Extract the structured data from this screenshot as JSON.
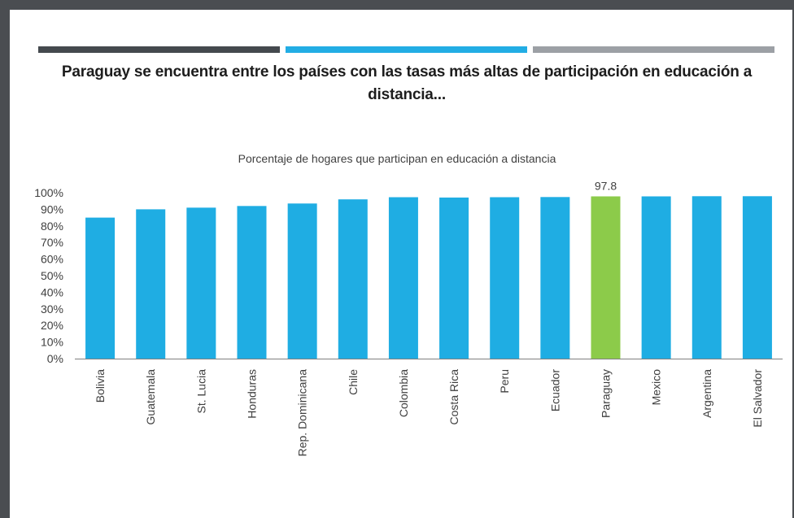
{
  "header": {
    "headline": "Paraguay se encuentra entre los países con las tasas más altas de participación en educación a distancia...",
    "stripe_colors": [
      "#44494e",
      "#22ade4",
      "#9ca0a5"
    ]
  },
  "colors": {
    "bar": "#1fade3",
    "highlight": "#8ccb4a",
    "axis": "#7f7f7f",
    "text": "#404040"
  },
  "chart_data": {
    "type": "bar",
    "title": "Porcentaje de hogares que participan en educación a distancia",
    "xlabel": "",
    "ylabel": "",
    "categories": [
      "Bolivia",
      "Guatemala",
      "St. Lucia",
      "Honduras",
      "Rep. Dominicana",
      "Chile",
      "Colombia",
      "Costa Rica",
      "Peru",
      "Ecuador",
      "Paraguay",
      "Mexico",
      "Argentina",
      "El Salvador"
    ],
    "values": [
      85,
      90,
      91,
      92,
      93.5,
      96,
      97.3,
      97.1,
      97.3,
      97.4,
      97.8,
      97.8,
      97.9,
      97.9
    ],
    "highlight_category": "Paraguay",
    "data_labels": [
      {
        "category": "Paraguay",
        "text": "97.8"
      }
    ],
    "yticks": [
      "0%",
      "10%",
      "20%",
      "30%",
      "40%",
      "50%",
      "60%",
      "70%",
      "80%",
      "90%",
      "100%"
    ],
    "ylim": [
      0,
      100
    ],
    "grid": false,
    "legend": "none"
  }
}
